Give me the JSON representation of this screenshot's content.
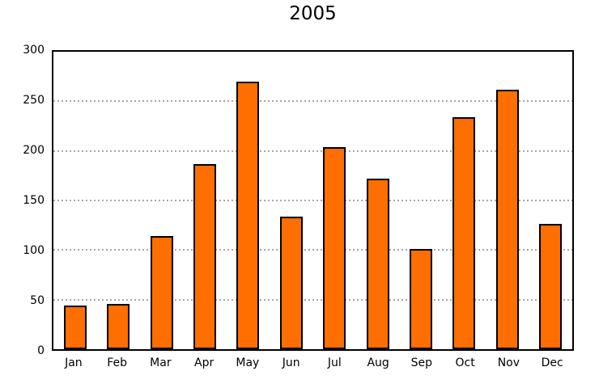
{
  "chart_data": {
    "type": "bar",
    "title": "2005",
    "categories": [
      "Jan",
      "Feb",
      "Mar",
      "Apr",
      "May",
      "Jun",
      "Jul",
      "Aug",
      "Sep",
      "Oct",
      "Nov",
      "Dec"
    ],
    "values": [
      44,
      46,
      114,
      187,
      270,
      134,
      204,
      172,
      101,
      234,
      262,
      126
    ],
    "ylim": [
      0,
      300
    ],
    "yticks": [
      0,
      50,
      100,
      150,
      200,
      250,
      300
    ],
    "xlabel": "",
    "ylabel": "",
    "legend": "none",
    "grid": "horizontal dotted lines at each y tick between 50 and 250",
    "colors": {
      "bar_fill": "#FF6E00",
      "bar_border": "#000000",
      "grid_line": "#A8A8A8",
      "axis_frame": "#000000",
      "background": "#FFFFFF",
      "text": "#000000"
    }
  }
}
